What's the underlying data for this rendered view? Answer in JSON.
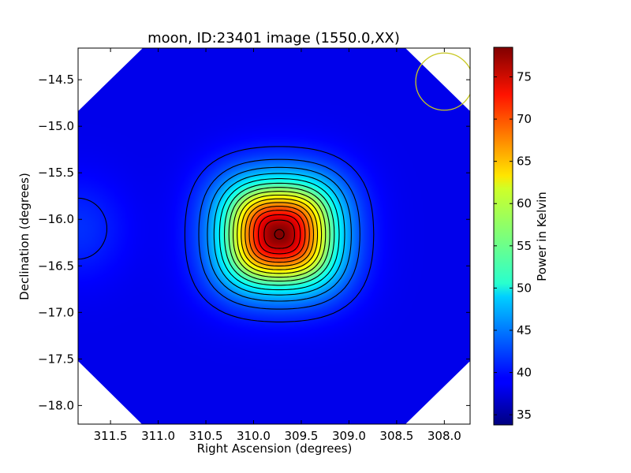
{
  "chart_data": {
    "type": "heatmap",
    "title": "moon, ID:23401 image (1550.0,XX)",
    "xlabel": "Right Ascension (degrees)",
    "ylabel": "Declination (degrees)",
    "xlim": [
      311.84,
      307.73
    ],
    "ylim": [
      -18.2,
      -14.16
    ],
    "x_ticks": [
      311.5,
      311.0,
      310.5,
      310.0,
      309.5,
      309.0,
      308.5,
      308.0
    ],
    "x_tick_labels": [
      "311.5",
      "311.0",
      "310.5",
      "310.0",
      "309.5",
      "309.0",
      "308.5",
      "308.0"
    ],
    "y_ticks": [
      -14.5,
      -15.0,
      -15.5,
      -16.0,
      -16.5,
      -17.0,
      -17.5,
      -18.0
    ],
    "y_tick_labels": [
      "−14.5",
      "−15.0",
      "−15.5",
      "−16.0",
      "−16.5",
      "−17.0",
      "−17.5",
      "−18.0"
    ],
    "colorbar": {
      "label": "Power in Kelvin",
      "min": 33.8,
      "max": 78.5,
      "ticks": [
        35,
        40,
        45,
        50,
        55,
        60,
        65,
        70,
        75
      ],
      "tick_labels": [
        "35",
        "40",
        "45",
        "50",
        "55",
        "60",
        "65",
        "70",
        "75"
      ],
      "colormap": "jet"
    },
    "source": {
      "ra": 309.73,
      "dec": -16.16,
      "peak": 78.5,
      "background": 38.5
    },
    "contour_levels": [
      40.5,
      43,
      45.5,
      48,
      50.5,
      53,
      55.5,
      58,
      60.5,
      63,
      65.5,
      68,
      70.5,
      73,
      75.5
    ],
    "secondary_source": {
      "ra": 311.84,
      "dec": -16.1,
      "value": 40.8
    },
    "beam_circle": {
      "ra": 308.0,
      "dec": -14.52,
      "radius_deg": 0.3,
      "color": "#c8c820"
    },
    "masked_color": "#ffffff",
    "grid": false,
    "legend": "none"
  }
}
